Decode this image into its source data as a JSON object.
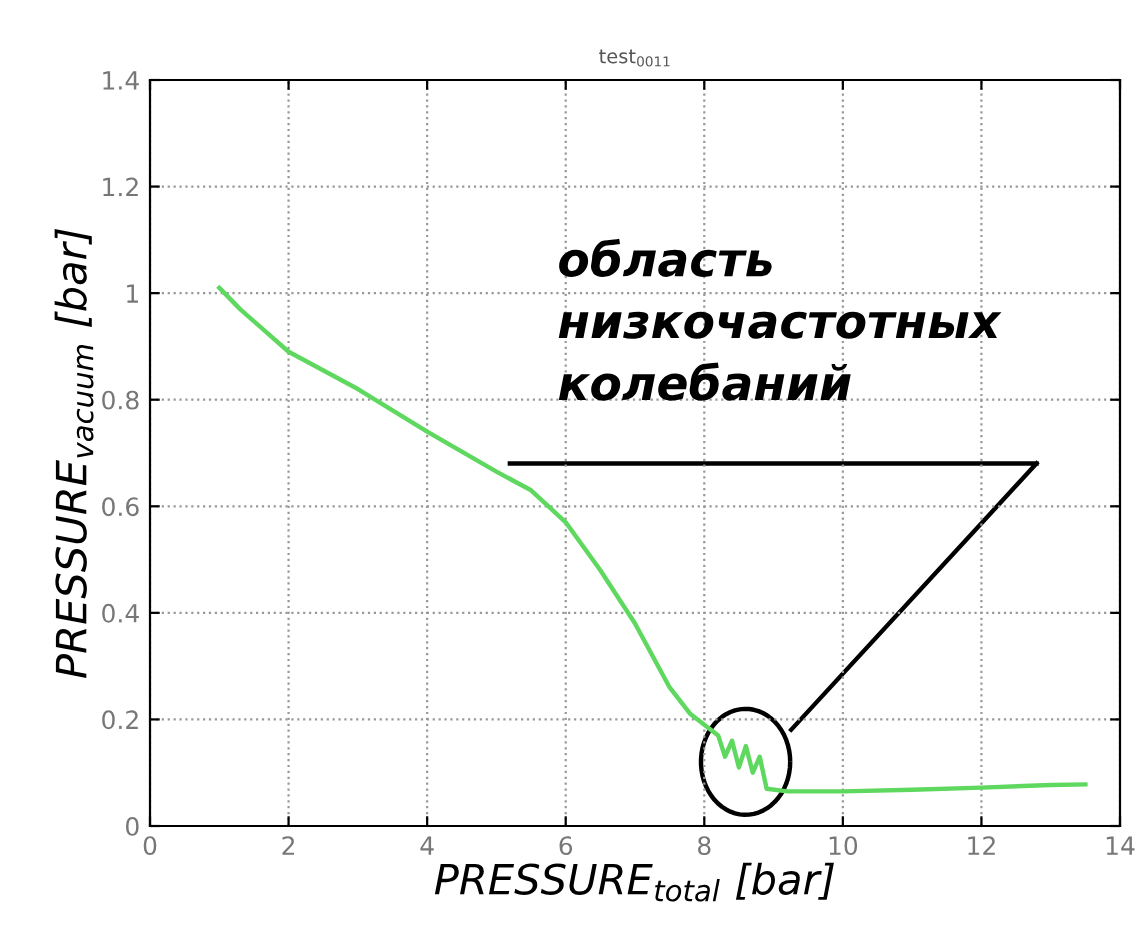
{
  "chart_data": {
    "type": "line",
    "title": "test$_{0011}$",
    "xlabel": "PRESSURE$_{total}$ [bar]",
    "ylabel": "PRESSURE$_{vacuum}$ [bar]",
    "series": [
      {
        "color": "#5fd85f",
        "x": [
          1,
          1.3,
          2,
          3,
          4,
          5,
          5.5,
          6,
          6.5,
          7,
          7.5,
          7.8,
          8,
          8.2,
          8.3,
          8.4,
          8.5,
          8.6,
          8.7,
          8.8,
          8.9,
          9.2,
          10,
          11,
          12,
          13,
          13.5
        ],
        "values": [
          1.01,
          0.97,
          0.89,
          0.82,
          0.74,
          0.665,
          0.63,
          0.57,
          0.48,
          0.38,
          0.26,
          0.21,
          0.19,
          0.17,
          0.13,
          0.16,
          0.11,
          0.15,
          0.1,
          0.13,
          0.07,
          0.065,
          0.065,
          0.068,
          0.072,
          0.077,
          0.078
        ]
      }
    ],
    "annotations": [
      "область\nнизкочастотных\nколебаний"
    ],
    "xlim": [
      0,
      14
    ],
    "ylim": [
      0,
      1.4
    ],
    "xticks": [
      0,
      2,
      4,
      6,
      8,
      10,
      12,
      14
    ],
    "yticks": [
      0,
      0.2,
      0.4,
      0.6,
      0.8,
      1,
      1.2,
      1.4
    ],
    "grid": true,
    "line_style": "solid"
  }
}
